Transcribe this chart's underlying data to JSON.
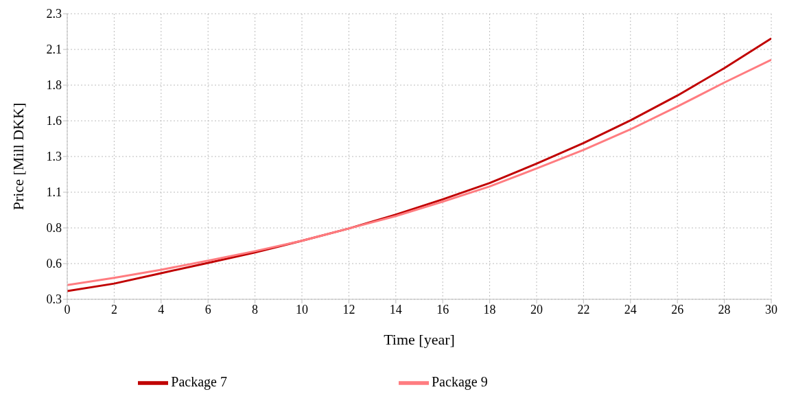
{
  "chart_data": {
    "type": "line",
    "xlabel": "Time [year]",
    "ylabel": "Price [Mill DKK]",
    "x": [
      0,
      2,
      4,
      6,
      8,
      10,
      12,
      14,
      16,
      18,
      20,
      22,
      24,
      26,
      28,
      30
    ],
    "series": [
      {
        "name": "Package 7",
        "color": "#c00000",
        "values": [
          0.358,
          0.41,
          0.483,
          0.555,
          0.628,
          0.71,
          0.796,
          0.893,
          1.0,
          1.114,
          1.25,
          1.394,
          1.553,
          1.727,
          1.919,
          2.127
        ]
      },
      {
        "name": "Package 9",
        "color": "#ff7c80",
        "values": [
          0.4,
          0.45,
          0.507,
          0.57,
          0.637,
          0.71,
          0.796,
          0.883,
          0.984,
          1.09,
          1.216,
          1.346,
          1.49,
          1.65,
          1.818,
          1.977
        ]
      }
    ],
    "xlim": [
      0,
      30
    ],
    "xticks": [
      0,
      2,
      4,
      6,
      8,
      10,
      12,
      14,
      16,
      18,
      20,
      22,
      24,
      26,
      28,
      30
    ],
    "ylim": [
      0.3,
      2.3
    ],
    "yticks": [
      {
        "value": 0.3,
        "label": "0.3"
      },
      {
        "value": 0.55,
        "label": "0.6"
      },
      {
        "value": 0.8,
        "label": "0.8"
      },
      {
        "value": 1.05,
        "label": "1.1"
      },
      {
        "value": 1.3,
        "label": "1.3"
      },
      {
        "value": 1.55,
        "label": "1.6"
      },
      {
        "value": 1.8,
        "label": "1.8"
      },
      {
        "value": 2.05,
        "label": "2.1"
      },
      {
        "value": 2.3,
        "label": "2.3"
      }
    ],
    "grid": true,
    "legend": "bottom",
    "marker": "none",
    "line_style": "solid"
  }
}
